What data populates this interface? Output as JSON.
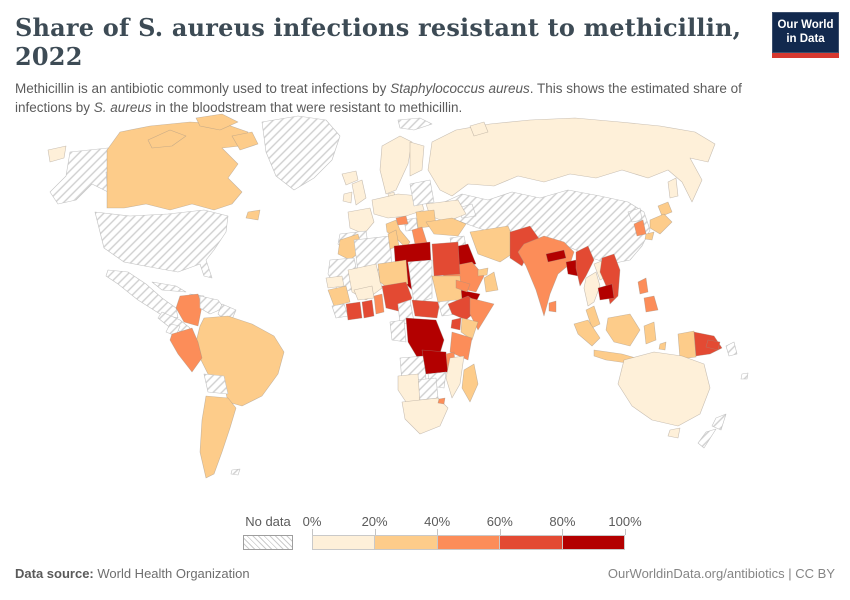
{
  "header": {
    "title": "Share of S. aureus infections resistant to methicillin, 2022",
    "subtitle_parts": [
      {
        "text": "Methicillin is an antibiotic commonly used to treat infections by "
      },
      {
        "text": "Staphylococcus aureus",
        "italic": true
      },
      {
        "text": ". This shows the estimated share of infections by "
      },
      {
        "text": "S. aureus",
        "italic": true
      },
      {
        "text": " in the bloodstream that were resistant to methicillin."
      }
    ],
    "logo": {
      "line1": "Our World",
      "line2": "in Data",
      "bg_color": "#12294e",
      "accent_color": "#d7382f"
    }
  },
  "legend": {
    "no_data_label": "No data",
    "tick_labels": [
      "0%",
      "20%",
      "40%",
      "60%",
      "80%",
      "100%"
    ],
    "bins": [
      {
        "range": "0-20%",
        "color": "#fef0d9"
      },
      {
        "range": "20-40%",
        "color": "#fdcc8a"
      },
      {
        "range": "40-60%",
        "color": "#fc8d59"
      },
      {
        "range": "60-80%",
        "color": "#e34a33"
      },
      {
        "range": "80-100%",
        "color": "#b30000"
      }
    ]
  },
  "footer": {
    "source_label": "Data source:",
    "source_value": " World Health Organization",
    "attribution": "OurWorldinData.org/antibiotics | CC BY"
  },
  "map": {
    "ocean_color": "#ffffff",
    "border_color": "#9a8f85",
    "no_data_border_color": "#c2c2c2",
    "hatch_line_color": "#cfcfcf"
  },
  "chart_data": {
    "type": "heatmap",
    "title": "Share of S. aureus infections resistant to methicillin, 2022",
    "unit": "%",
    "legend_bins": [
      "0-20%",
      "20-40%",
      "40-60%",
      "60-80%",
      "80-100%"
    ],
    "no_data_style": "hatched",
    "country_bins": {
      "russia": "0-20%",
      "svalbard": "no-data",
      "central-asia-china": "no-data",
      "caucasus": "no-data",
      "scandinavia": "0-20%",
      "finland": "0-20%",
      "denmark": "0-20%",
      "iceland": "0-20%",
      "united-kingdom": "0-20%",
      "ireland": "0-20%",
      "france": "0-20%",
      "iberia": "no-data",
      "central-europe": "0-20%",
      "belarus-baltics": "no-data",
      "ukraine": "0-20%",
      "serbia-bosnia": "no-data",
      "italy": "20-40%",
      "sicily": "20-40%",
      "sardinia": "20-40%",
      "croatia": "40-60%",
      "romania-bulgaria": "20-40%",
      "greece": "40-60%",
      "crete": "40-60%",
      "turkey": "20-40%",
      "syria": "no-data",
      "iraq": "80-100%",
      "iran": "20-40%",
      "jordan-israel": "20-40%",
      "saudi-arabia": "40-60%",
      "yemen": "80-100%",
      "oman": "20-40%",
      "uae": "20-40%",
      "pakistan": "60-80%",
      "india": "40-60%",
      "nepal": "80-100%",
      "bangladesh": "80-100%",
      "sri-lanka": "40-60%",
      "myanmar": "60-80%",
      "thailand": "0-20%",
      "laos": "0-20%",
      "cambodia": "80-100%",
      "vietnam": "60-80%",
      "north-korea": "no-data",
      "south-korea": "40-60%",
      "japan": "20-40%",
      "philippines": "40-60%",
      "malaysia": "20-40%",
      "indonesia": "20-40%",
      "papua-indonesia": "20-40%",
      "papua-new-guinea": "60-80%",
      "solomon-new-britain": "60-80%",
      "australia": "0-20%",
      "tasmania": "0-20%",
      "new-zealand": "no-data",
      "new-caledonia": "no-data",
      "fiji": "no-data",
      "morocco": "20-40%",
      "western-sahara-mauritania": "no-data",
      "algeria": "no-data",
      "tunisia": "20-40%",
      "libya": "80-100%",
      "egypt": "60-80%",
      "mali": "0-20%",
      "senegal": "0-20%",
      "guinea": "20-40%",
      "sierra-leone-liberia": "no-data",
      "burkina-faso": "0-20%",
      "ivory-coast": "60-80%",
      "ghana": "60-80%",
      "togo-benin": "40-60%",
      "niger": "20-40%",
      "nigeria": "60-80%",
      "chad": "no-data",
      "sudan": "20-40%",
      "eritrea": "40-60%",
      "south-sudan": "no-data",
      "ethiopia": "60-80%",
      "somalia": "40-60%",
      "cameroon": "no-data",
      "central-african-republic": "60-80%",
      "congo-gabon": "no-data",
      "uganda": "60-80%",
      "kenya": "20-40%",
      "tanzania": "40-60%",
      "democratic-republic-of-congo": "80-100%",
      "angola": "no-data",
      "zambia": "80-100%",
      "malawi": "40-60%",
      "mozambique": "0-20%",
      "zimbabwe": "no-data",
      "botswana": "no-data",
      "namibia": "0-20%",
      "south-africa": "0-20%",
      "eswatini": "40-60%",
      "madagascar": "20-40%",
      "united-states": "no-data",
      "canada": "20-40%",
      "greenland": "no-data",
      "mexico": "no-data",
      "central-america": "no-data",
      "caribbean": "no-data",
      "colombia": "40-60%",
      "venezuela": "no-data",
      "guyana-suriname": "no-data",
      "ecuador": "no-data",
      "peru": "40-60%",
      "brazil": "20-40%",
      "bolivia": "no-data",
      "argentina-chile": "20-40%",
      "falkland-islands": "no-data"
    }
  }
}
